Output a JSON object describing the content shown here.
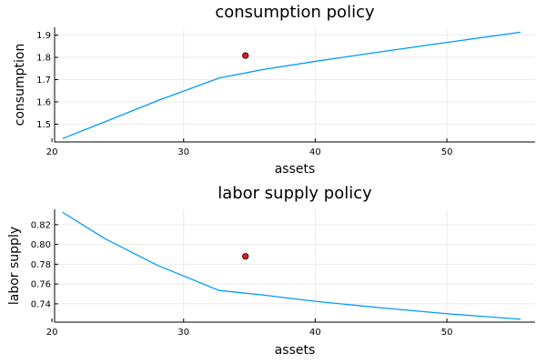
{
  "chart_data": [
    {
      "type": "line",
      "title": "consumption policy",
      "xlabel": "assets",
      "ylabel": "consumption",
      "xlim": [
        20.2,
        56.7
      ],
      "ylim": [
        1.42,
        1.935
      ],
      "xticks": [
        20,
        30,
        40,
        50
      ],
      "yticks": [
        1.5,
        1.6,
        1.7,
        1.8,
        1.9
      ],
      "xtick_labels": [
        "20",
        "30",
        "40",
        "50"
      ],
      "ytick_labels": [
        "1.5",
        "1.6",
        "1.7",
        "1.8",
        "1.9"
      ],
      "grid": true,
      "legend": "none",
      "series": [
        {
          "color": "#009AF9",
          "x": [
            20.8,
            24.0,
            28.0,
            32.7,
            36.0,
            40.0,
            45.0,
            50.0,
            55.6
          ],
          "y": [
            1.435,
            1.51,
            1.605,
            1.707,
            1.745,
            1.782,
            1.825,
            1.867,
            1.913
          ]
        }
      ],
      "marker": {
        "x": 34.7,
        "y": 1.808,
        "color": "#E31A1C"
      }
    },
    {
      "type": "line",
      "title": "labor supply policy",
      "xlabel": "assets",
      "ylabel": "labor supply",
      "xlim": [
        20.2,
        56.7
      ],
      "ylim": [
        0.7215,
        0.8355
      ],
      "xticks": [
        20,
        30,
        40,
        50
      ],
      "yticks": [
        0.74,
        0.76,
        0.78,
        0.8,
        0.82
      ],
      "xtick_labels": [
        "20",
        "30",
        "40",
        "50"
      ],
      "ytick_labels": [
        "0.74",
        "0.76",
        "0.78",
        "0.80",
        "0.82"
      ],
      "grid": true,
      "legend": "none",
      "series": [
        {
          "color": "#009AF9",
          "x": [
            20.8,
            24.0,
            28.0,
            32.7,
            36.0,
            40.0,
            45.0,
            50.0,
            55.6
          ],
          "y": [
            0.8325,
            0.806,
            0.779,
            0.7535,
            0.749,
            0.7425,
            0.736,
            0.73,
            0.7245
          ]
        }
      ],
      "marker": {
        "x": 34.7,
        "y": 0.788,
        "color": "#E31A1C"
      }
    }
  ]
}
